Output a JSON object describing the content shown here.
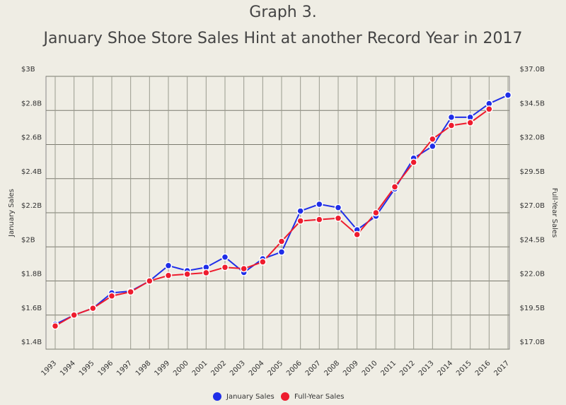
{
  "chart_data": {
    "type": "line",
    "title": "Graph 3.",
    "subtitle": "January Shoe Store Sales Hint at another Record Year in 2017",
    "y_label": "January Sales",
    "y2_label": "Full-Year Sales",
    "categories": [
      "1993",
      "1994",
      "1995",
      "1996",
      "1997",
      "1998",
      "1999",
      "2000",
      "2001",
      "2002",
      "2003",
      "2004",
      "2005",
      "2006",
      "2007",
      "2008",
      "2009",
      "2010",
      "2011",
      "2012",
      "2013",
      "2014",
      "2015",
      "2016",
      "2017"
    ],
    "series": [
      {
        "name": "January Sales",
        "color": "#1f2ee8",
        "axis": "y",
        "values": [
          1.545,
          1.6,
          1.64,
          1.73,
          1.74,
          1.8,
          1.89,
          1.86,
          1.88,
          1.94,
          1.85,
          1.93,
          1.97,
          2.21,
          2.25,
          2.23,
          2.1,
          2.18,
          2.34,
          2.52,
          2.59,
          2.76,
          2.76,
          2.84,
          2.89
        ]
      },
      {
        "name": "Full-Year Sales",
        "color": "#ee1c2e",
        "axis": "y2",
        "values": [
          18.7,
          19.5,
          20.0,
          20.9,
          21.2,
          22.0,
          22.4,
          22.5,
          22.6,
          23.0,
          22.9,
          23.4,
          24.9,
          26.4,
          26.5,
          26.6,
          25.4,
          27.0,
          28.9,
          30.7,
          32.4,
          33.4,
          33.6,
          34.6,
          null
        ]
      }
    ],
    "ylim": [
      1.4,
      3.0
    ],
    "yticks": [
      {
        "value": 1.4,
        "label": "$1.4B"
      },
      {
        "value": 1.6,
        "label": "$1.6B"
      },
      {
        "value": 1.8,
        "label": "$1.8B"
      },
      {
        "value": 2.0,
        "label": "$2B"
      },
      {
        "value": 2.2,
        "label": "$2.2B"
      },
      {
        "value": 2.4,
        "label": "$2.4B"
      },
      {
        "value": 2.6,
        "label": "$2.6B"
      },
      {
        "value": 2.8,
        "label": "$2.8B"
      },
      {
        "value": 3.0,
        "label": "$3B"
      }
    ],
    "y2lim": [
      17.0,
      37.0
    ],
    "y2ticks": [
      {
        "value": 17,
        "label": "$17.0B"
      },
      {
        "value": 19.5,
        "label": "$19.5B"
      },
      {
        "value": 22,
        "label": "$22.0B"
      },
      {
        "value": 24.5,
        "label": "$24.5B"
      },
      {
        "value": 27,
        "label": "$27.0B"
      },
      {
        "value": 29.5,
        "label": "$29.5B"
      },
      {
        "value": 32,
        "label": "$32.0B"
      },
      {
        "value": 34.5,
        "label": "$34.5B"
      },
      {
        "value": 37,
        "label": "$37.0B"
      }
    ],
    "grid": true,
    "legend": "bottom"
  }
}
